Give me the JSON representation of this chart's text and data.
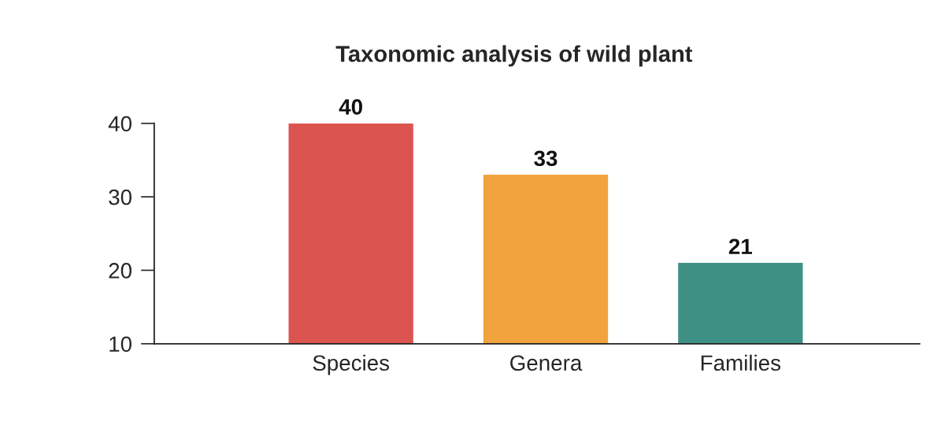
{
  "chart_data": {
    "type": "bar",
    "title": "Taxonomic analysis of wild plant",
    "categories": [
      "Species",
      "Genera",
      "Families"
    ],
    "values": [
      40,
      33,
      21
    ],
    "colors": [
      "#dc5450",
      "#f2a33e",
      "#3f9085"
    ],
    "data_labels": true,
    "ylim": [
      10,
      40
    ],
    "yticks": [
      10,
      20,
      30,
      40
    ],
    "grid": false
  }
}
